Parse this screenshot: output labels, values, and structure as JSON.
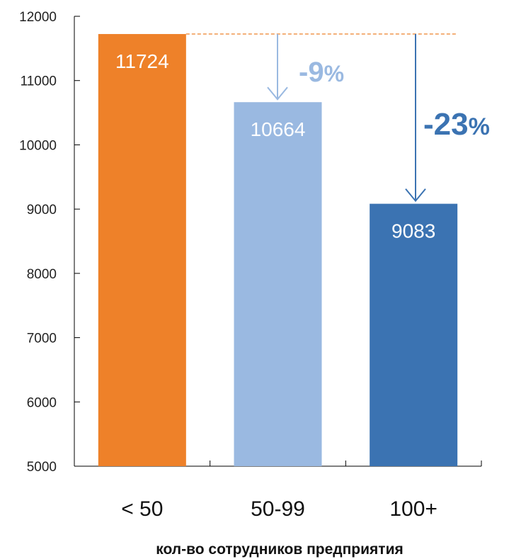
{
  "chart_data": {
    "type": "bar",
    "categories": [
      "< 50",
      "50-99",
      "100+"
    ],
    "values": [
      11724,
      10664,
      9083
    ],
    "bar_colors": [
      "#ee8129",
      "#9ab9e1",
      "#3b73b2"
    ],
    "value_labels": [
      "11724",
      "10664",
      "9083"
    ],
    "xlabel": "кол-во сотрудников предприятия",
    "ylabel": "",
    "ylim": [
      5000,
      12000
    ],
    "yticks": [
      5000,
      6000,
      7000,
      8000,
      9000,
      10000,
      11000,
      12000
    ],
    "grid": false,
    "reference_line": {
      "value": 11724,
      "color": "#ee8129",
      "style": "dashed"
    },
    "annotations": [
      {
        "from_value": 11724,
        "to_category": "50-99",
        "to_value": 10664,
        "text": "-9",
        "suffix": "%",
        "color": "#9ab9e1"
      },
      {
        "from_value": 11724,
        "to_category": "100+",
        "to_value": 9083,
        "text": "-23",
        "suffix": "%",
        "color": "#3b73b2"
      }
    ]
  }
}
